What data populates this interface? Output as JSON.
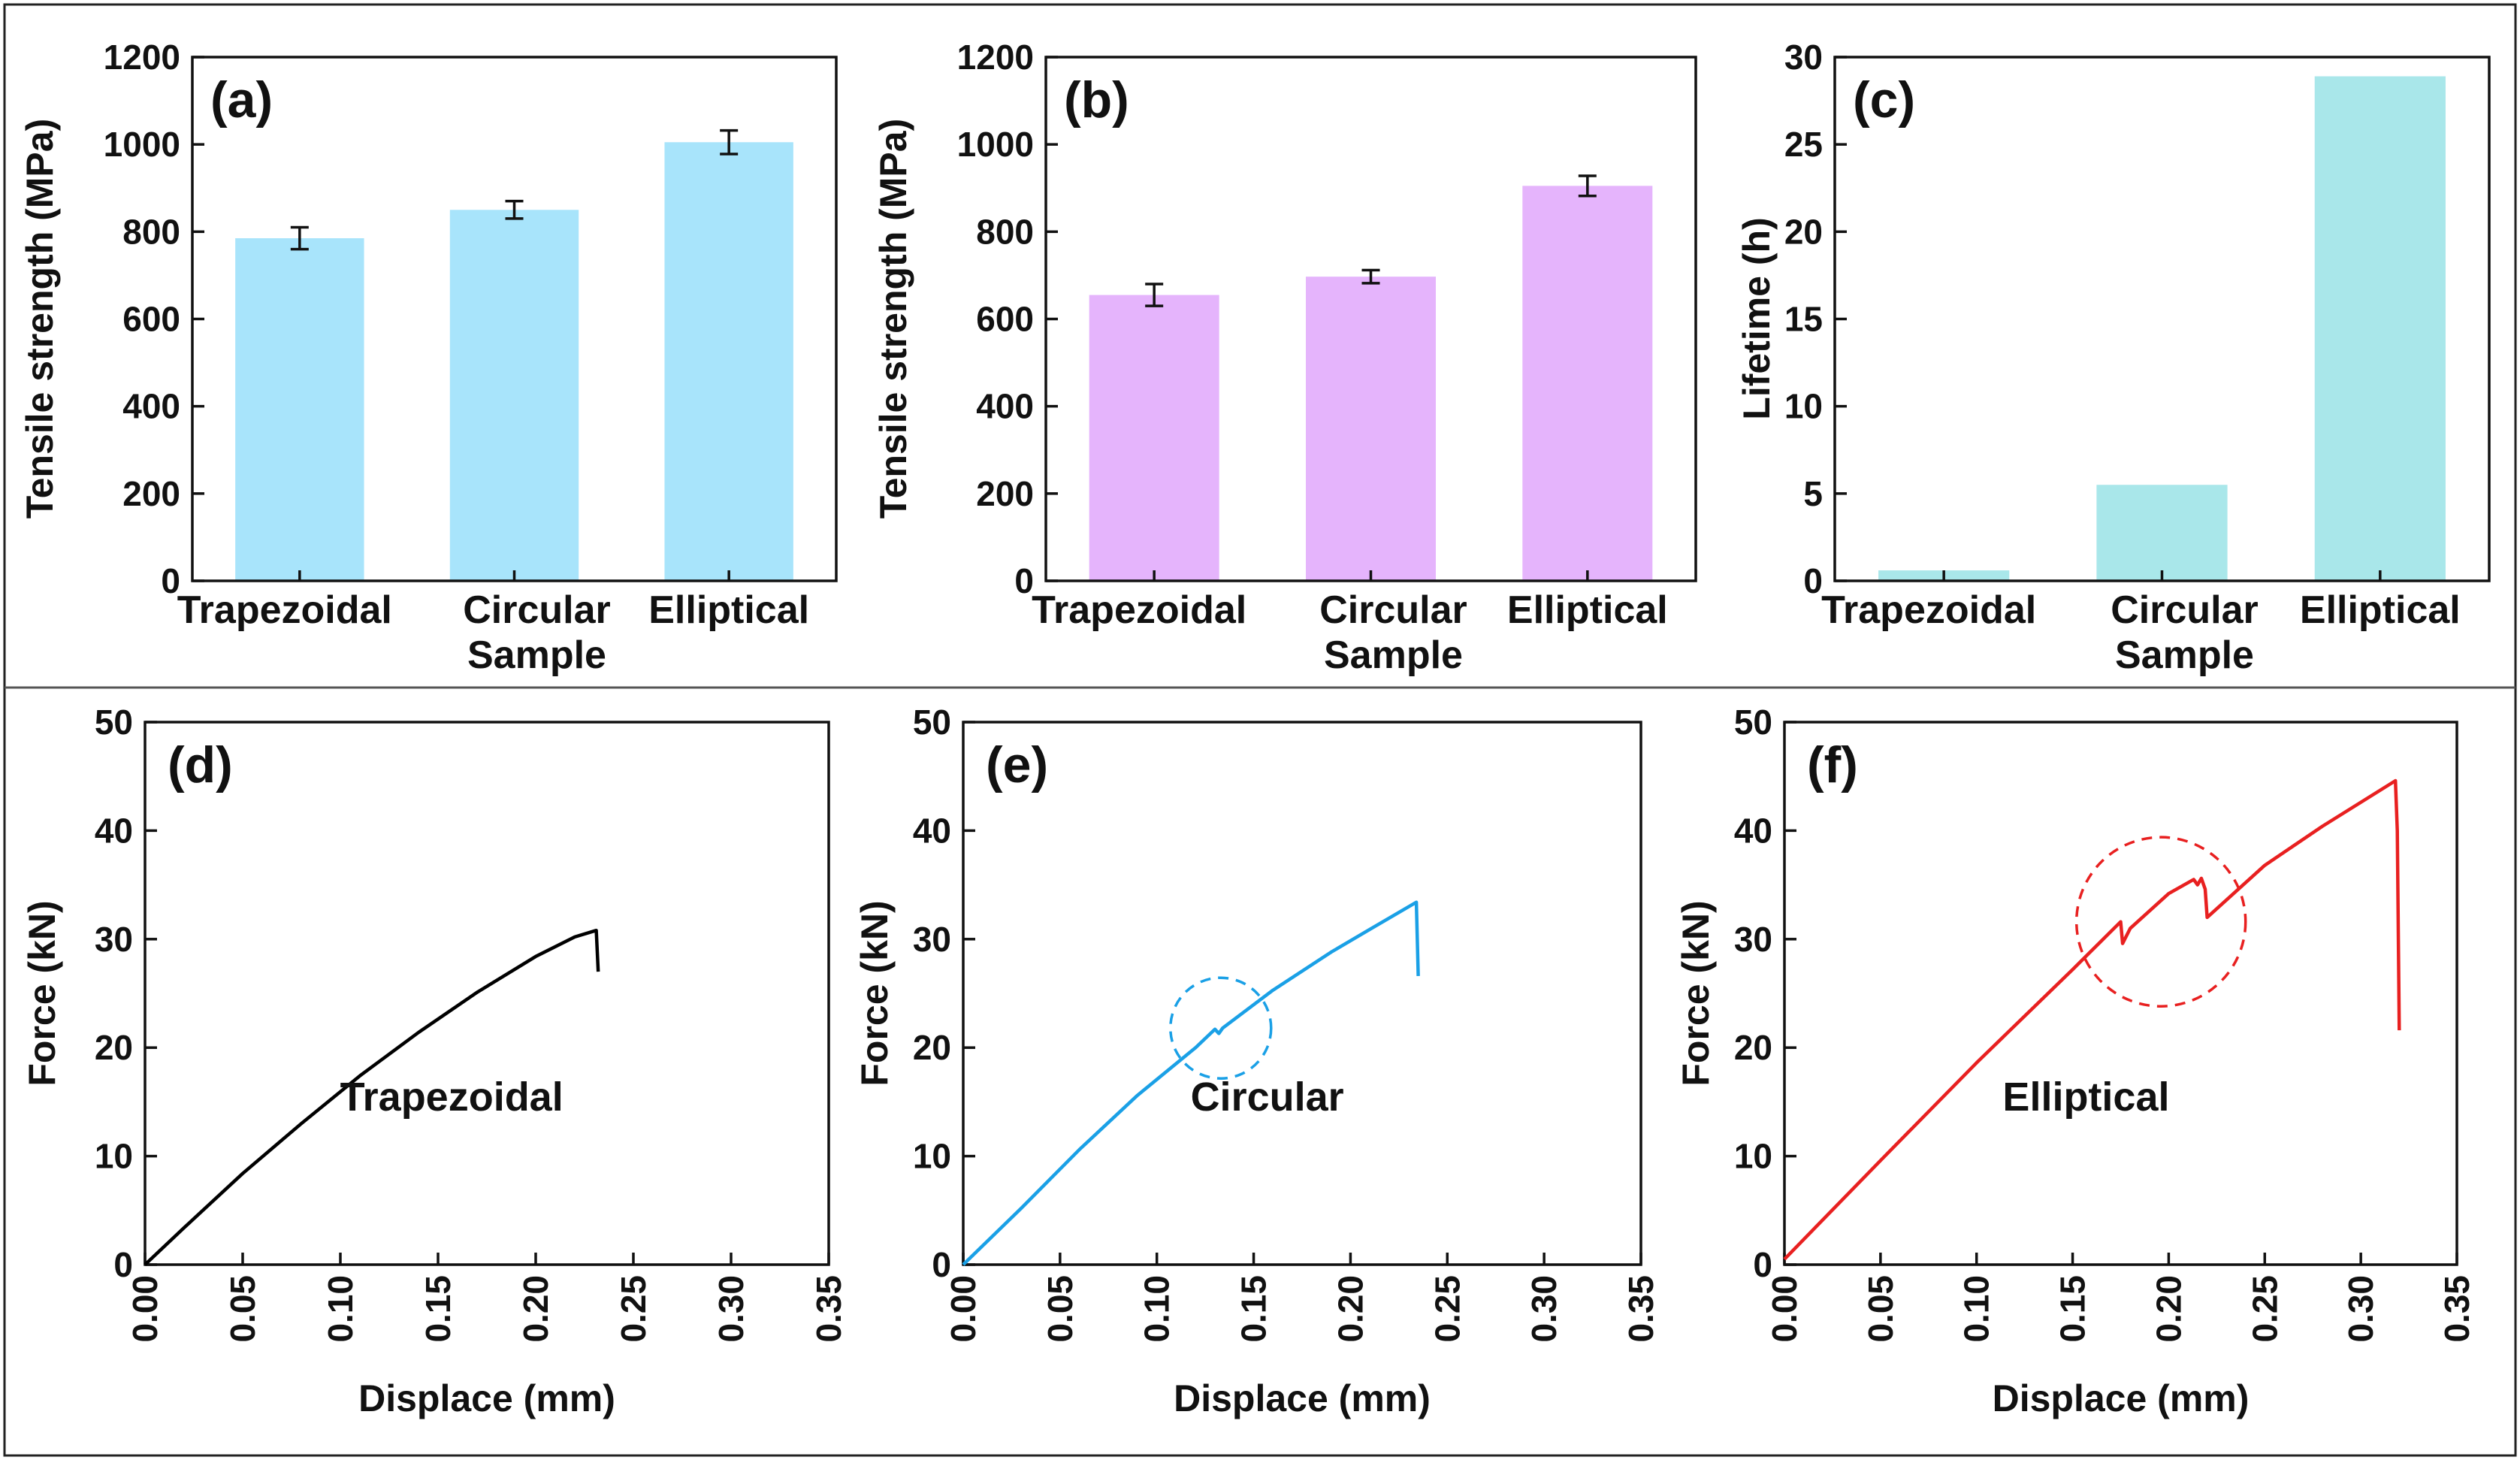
{
  "figure": {
    "sample_axis_label": "Sample"
  },
  "chart_data": [
    {
      "panel": "(a)",
      "type": "bar",
      "categories": [
        "Trapezoidal",
        "Circular",
        "Elliptical"
      ],
      "values": [
        785,
        850,
        1005
      ],
      "errors": [
        25,
        20,
        27
      ],
      "xlabel": "Sample",
      "ylabel": "Tensile strength  (MPa)",
      "ylim": [
        0,
        1200
      ],
      "yticks": [
        0,
        200,
        400,
        600,
        800,
        1000,
        1200
      ],
      "color": "#a8e4fb"
    },
    {
      "panel": "(b)",
      "type": "bar",
      "categories": [
        "Trapezoidal",
        "Circular",
        "Elliptical"
      ],
      "values": [
        655,
        697,
        905
      ],
      "errors": [
        25,
        15,
        23
      ],
      "xlabel": "Sample",
      "ylabel": "Tensile strength  (MPa)",
      "ylim": [
        0,
        1200
      ],
      "yticks": [
        0,
        200,
        400,
        600,
        800,
        1000,
        1200
      ],
      "color": "#e5b4fc"
    },
    {
      "panel": "(c)",
      "type": "bar",
      "categories": [
        "Trapezoidal",
        "Circular",
        "Elliptical"
      ],
      "values": [
        0.6,
        5.5,
        28.9
      ],
      "xlabel": "Sample",
      "ylabel": "Lifetime (h)",
      "ylim": [
        0,
        30
      ],
      "yticks": [
        0,
        5,
        10,
        15,
        20,
        25,
        30
      ],
      "color": "#a9e7ea"
    },
    {
      "panel": "(d)",
      "type": "line",
      "annotation": "Trapezoidal",
      "xlabel": "Displace (mm)",
      "ylabel": "Force (kN)",
      "xlim": [
        0,
        0.35
      ],
      "ylim": [
        0,
        50
      ],
      "xticks": [
        "0.00",
        "0.05",
        "0.10",
        "0.15",
        "0.20",
        "0.25",
        "0.30",
        "0.35"
      ],
      "yticks": [
        0,
        10,
        20,
        30,
        40,
        50
      ],
      "color": "#000000",
      "x": [
        0.0,
        0.02,
        0.05,
        0.08,
        0.11,
        0.14,
        0.17,
        0.2,
        0.22,
        0.231,
        0.232
      ],
      "y": [
        0.0,
        3.4,
        8.4,
        13.0,
        17.4,
        21.4,
        25.1,
        28.4,
        30.2,
        30.8,
        27.0
      ],
      "circle": null
    },
    {
      "panel": "(e)",
      "type": "line",
      "annotation": "Circular",
      "xlabel": "Displace (mm)",
      "ylabel": "Force (kN)",
      "xlim": [
        0,
        0.35
      ],
      "ylim": [
        0,
        50
      ],
      "xticks": [
        "0.00",
        "0.05",
        "0.10",
        "0.15",
        "0.20",
        "0.25",
        "0.30",
        "0.35"
      ],
      "yticks": [
        0,
        10,
        20,
        30,
        40,
        50
      ],
      "color": "#1aa0e6",
      "x": [
        0.0,
        0.03,
        0.06,
        0.09,
        0.12,
        0.13,
        0.132,
        0.134,
        0.16,
        0.19,
        0.21,
        0.234,
        0.235
      ],
      "y": [
        0.0,
        5.2,
        10.6,
        15.6,
        20.0,
        21.7,
        21.3,
        21.8,
        25.3,
        28.8,
        30.9,
        33.4,
        26.6
      ],
      "circle": {
        "cx": 0.133,
        "cy": 21.8,
        "r": 0.026
      }
    },
    {
      "panel": "(f)",
      "type": "line",
      "annotation": "Elliptical",
      "xlabel": "Displace (mm)",
      "ylabel": "Force (kN)",
      "xlim": [
        0,
        0.35
      ],
      "ylim": [
        0,
        50
      ],
      "xticks": [
        "0.00",
        "0.05",
        "0.10",
        "0.15",
        "0.20",
        "0.25",
        "0.30",
        "0.35"
      ],
      "yticks": [
        0,
        10,
        20,
        30,
        40,
        50
      ],
      "color": "#e82020",
      "x": [
        0.0,
        0.05,
        0.1,
        0.15,
        0.175,
        0.176,
        0.18,
        0.2,
        0.213,
        0.215,
        0.217,
        0.219,
        0.22,
        0.25,
        0.28,
        0.318,
        0.319,
        0.32
      ],
      "y": [
        0.5,
        9.6,
        18.6,
        27.2,
        31.6,
        29.6,
        31.0,
        34.2,
        35.5,
        35.0,
        35.6,
        34.6,
        32.0,
        36.8,
        40.4,
        44.6,
        40.0,
        21.6
      ],
      "circle": {
        "cx": 0.196,
        "cy": 31.6,
        "r": 0.044
      }
    }
  ]
}
